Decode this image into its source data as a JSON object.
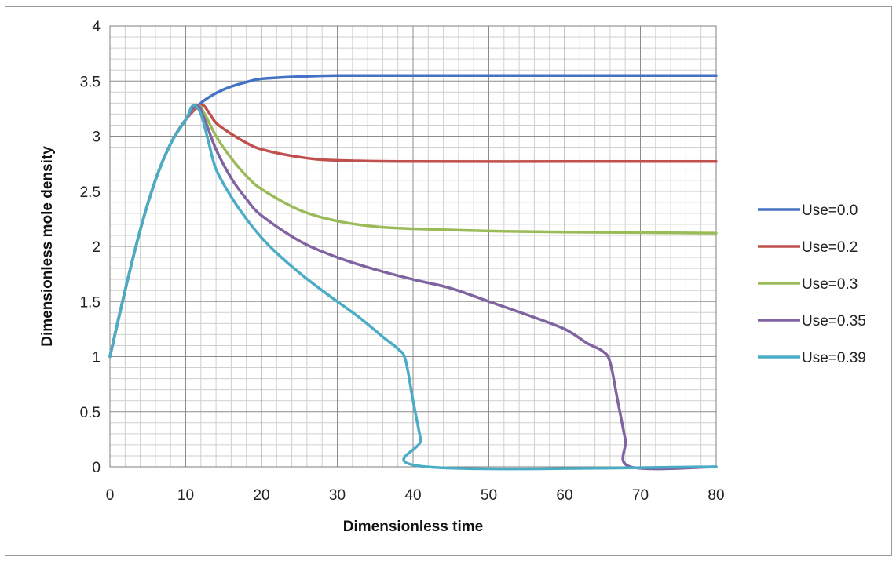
{
  "chart_data": {
    "type": "line",
    "title": "",
    "xlabel": "Dimensionless time",
    "ylabel": "Dimensionless mole density",
    "xlim": [
      0,
      80
    ],
    "ylim": [
      0,
      4
    ],
    "x_ticks": [
      "0",
      "10",
      "20",
      "30",
      "40",
      "50",
      "60",
      "70",
      "80"
    ],
    "y_ticks": [
      "0",
      "0.5",
      "1",
      "1.5",
      "2",
      "2.5",
      "3",
      "3.5",
      "4"
    ],
    "grid": true,
    "legend_position": "right",
    "series": [
      {
        "name": "Use=0.0",
        "color": "#4472C4",
        "points": [
          [
            0,
            1.0
          ],
          [
            2,
            1.6
          ],
          [
            4,
            2.15
          ],
          [
            6,
            2.6
          ],
          [
            8,
            2.93
          ],
          [
            10,
            3.15
          ],
          [
            12,
            3.3
          ],
          [
            14,
            3.39
          ],
          [
            16,
            3.45
          ],
          [
            18,
            3.49
          ],
          [
            20,
            3.52
          ],
          [
            25,
            3.54
          ],
          [
            30,
            3.55
          ],
          [
            40,
            3.55
          ],
          [
            60,
            3.55
          ],
          [
            80,
            3.55
          ]
        ]
      },
      {
        "name": "Use=0.2",
        "color": "#C0504D",
        "points": [
          [
            0,
            1.0
          ],
          [
            2,
            1.6
          ],
          [
            4,
            2.15
          ],
          [
            6,
            2.6
          ],
          [
            8,
            2.93
          ],
          [
            10,
            3.15
          ],
          [
            12,
            3.28
          ],
          [
            13,
            3.22
          ],
          [
            14,
            3.12
          ],
          [
            16,
            3.02
          ],
          [
            18,
            2.94
          ],
          [
            20,
            2.88
          ],
          [
            25,
            2.81
          ],
          [
            30,
            2.78
          ],
          [
            40,
            2.77
          ],
          [
            60,
            2.77
          ],
          [
            80,
            2.77
          ]
        ]
      },
      {
        "name": "Use=0.3",
        "color": "#9BBB59",
        "points": [
          [
            0,
            1.0
          ],
          [
            2,
            1.6
          ],
          [
            4,
            2.15
          ],
          [
            6,
            2.6
          ],
          [
            8,
            2.93
          ],
          [
            10,
            3.15
          ],
          [
            11.5,
            3.28
          ],
          [
            12.5,
            3.2
          ],
          [
            14,
            3.0
          ],
          [
            16,
            2.8
          ],
          [
            18,
            2.64
          ],
          [
            20,
            2.52
          ],
          [
            25,
            2.33
          ],
          [
            30,
            2.23
          ],
          [
            35,
            2.18
          ],
          [
            40,
            2.16
          ],
          [
            50,
            2.14
          ],
          [
            60,
            2.13
          ],
          [
            80,
            2.12
          ]
        ]
      },
      {
        "name": "Use=0.35",
        "color": "#8064A2",
        "points": [
          [
            0,
            1.0
          ],
          [
            2,
            1.6
          ],
          [
            4,
            2.15
          ],
          [
            6,
            2.6
          ],
          [
            8,
            2.93
          ],
          [
            10,
            3.15
          ],
          [
            11.5,
            3.28
          ],
          [
            12.5,
            3.15
          ],
          [
            14,
            2.88
          ],
          [
            16,
            2.62
          ],
          [
            18,
            2.43
          ],
          [
            20,
            2.28
          ],
          [
            25,
            2.05
          ],
          [
            30,
            1.9
          ],
          [
            35,
            1.79
          ],
          [
            40,
            1.7
          ],
          [
            45,
            1.62
          ],
          [
            50,
            1.5
          ],
          [
            55,
            1.38
          ],
          [
            60,
            1.25
          ],
          [
            63,
            1.12
          ],
          [
            65,
            1.05
          ],
          [
            66,
            0.95
          ],
          [
            67,
            0.6
          ],
          [
            68,
            0.25
          ],
          [
            68.7,
            0.0
          ],
          [
            80,
            0.0
          ]
        ]
      },
      {
        "name": "Use=0.39",
        "color": "#4BACC6",
        "points": [
          [
            0,
            1.0
          ],
          [
            2,
            1.6
          ],
          [
            4,
            2.15
          ],
          [
            6,
            2.6
          ],
          [
            8,
            2.93
          ],
          [
            10,
            3.15
          ],
          [
            11,
            3.28
          ],
          [
            12,
            3.2
          ],
          [
            13,
            2.95
          ],
          [
            14,
            2.7
          ],
          [
            16,
            2.45
          ],
          [
            18,
            2.25
          ],
          [
            20,
            2.08
          ],
          [
            22,
            1.94
          ],
          [
            25,
            1.76
          ],
          [
            28,
            1.6
          ],
          [
            30,
            1.5
          ],
          [
            33,
            1.35
          ],
          [
            36,
            1.18
          ],
          [
            38,
            1.07
          ],
          [
            39,
            0.97
          ],
          [
            40,
            0.6
          ],
          [
            41,
            0.25
          ],
          [
            41.8,
            0.0
          ],
          [
            80,
            0.0
          ]
        ]
      }
    ]
  }
}
